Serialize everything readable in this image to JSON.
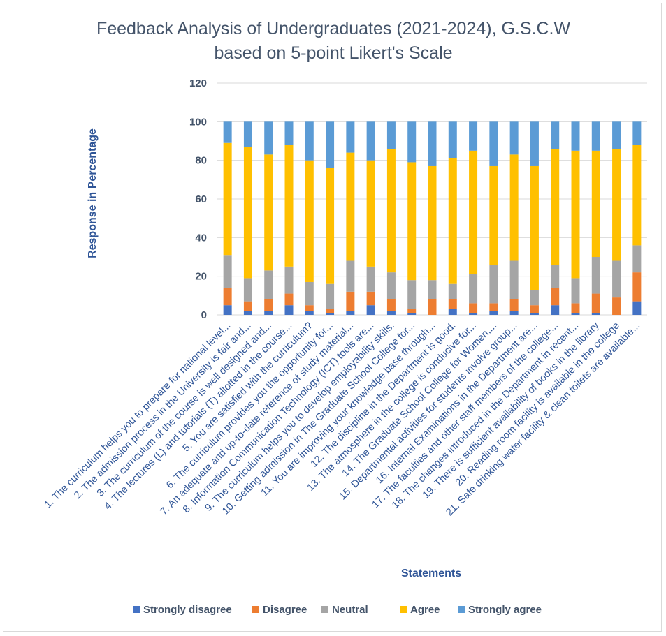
{
  "chart_data": {
    "type": "bar",
    "stacked": true,
    "title": "Feedback Analysis of Undergraduates (2021-2024), G.S.C.W",
    "subtitle": "based on   5-point Likert's Scale",
    "xlabel": "Statements",
    "ylabel": "Response in Percentage",
    "ylim": [
      0,
      120
    ],
    "yticks": [
      0,
      20,
      40,
      60,
      80,
      100,
      120
    ],
    "grid": true,
    "legend_position": "bottom",
    "categories": [
      "1. The curriculum helps you to prepare for national level...",
      "2. The admission process in the University is fair and...",
      "3. The curriculum of the course is well designed and...",
      "4. The lectures (L) and tutorials (T) allotted in the course...",
      "5. You are satisfied with the curriculum?",
      "6. The curriculum provides you the opportunity for...",
      "7. An adequate and up-to-date reference of study material...",
      "8. Information Communication Technology (ICT) tools are...",
      "9. The curriculum helps you to develop employability skills.",
      "10. Getting admission in The Graduate School College for...",
      "11. You are improving your knowledge base through...",
      "12. The discipline in the Department is good.",
      "13. The atmosphere in the college  is conducive for...",
      "14. The Graduate School College for Women,...",
      "15. Departmental activities for students involve group...",
      "16. Internal Examinations in the Department are...",
      "17. The faculties and other staff members of  the college...",
      "18. The changes introduced in the Department in recent...",
      "19. There is sufficient availability of books in the library",
      "20. Reading room facility is available in the college",
      "21. Safe drinking water facility & clean toilets are available..."
    ],
    "series": [
      {
        "name": "Strongly disagree",
        "color": "#4472c4",
        "values": [
          5,
          2,
          2,
          5,
          2,
          1,
          2,
          5,
          2,
          1,
          0,
          3,
          1,
          2,
          2,
          1,
          5,
          1,
          1,
          0,
          7
        ]
      },
      {
        "name": "Disagree",
        "color": "#ed7d31",
        "values": [
          9,
          5,
          6,
          6,
          3,
          2,
          10,
          7,
          6,
          2,
          8,
          5,
          5,
          4,
          6,
          4,
          9,
          5,
          10,
          9,
          15
        ]
      },
      {
        "name": "Neutral",
        "color": "#a5a5a5",
        "values": [
          17,
          12,
          15,
          14,
          12,
          13,
          16,
          13,
          14,
          15,
          10,
          8,
          15,
          20,
          20,
          8,
          12,
          13,
          19,
          19,
          14
        ]
      },
      {
        "name": "Agree",
        "color": "#ffc000",
        "values": [
          58,
          68,
          60,
          63,
          63,
          60,
          56,
          55,
          64,
          61,
          59,
          65,
          64,
          51,
          55,
          64,
          60,
          66,
          55,
          58,
          52
        ]
      },
      {
        "name": "Strongly agree",
        "color": "#5b9bd5",
        "values": [
          11,
          13,
          17,
          12,
          20,
          24,
          16,
          20,
          14,
          21,
          23,
          19,
          15,
          23,
          17,
          23,
          14,
          15,
          15,
          14,
          12
        ]
      }
    ]
  }
}
